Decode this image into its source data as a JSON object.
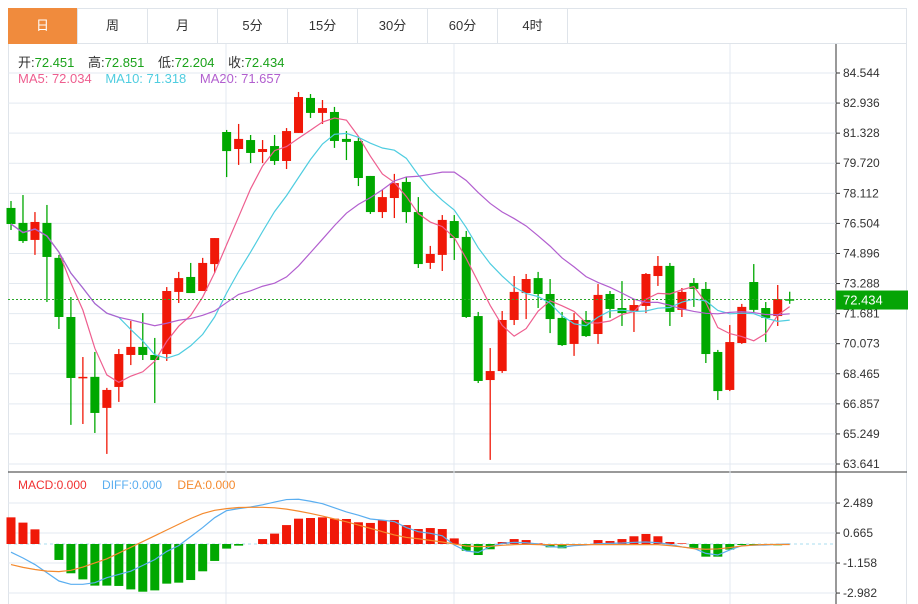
{
  "tabs": [
    {
      "label": "日",
      "active": true
    },
    {
      "label": "周"
    },
    {
      "label": "月"
    },
    {
      "label": "5分"
    },
    {
      "label": "15分"
    },
    {
      "label": "30分"
    },
    {
      "label": "60分"
    },
    {
      "label": "4时"
    }
  ],
  "ohlc_info": {
    "open_label": "开:",
    "open": "72.451",
    "high_label": "高:",
    "high": "72.851",
    "low_label": "低:",
    "low": "72.204",
    "close_label": "收:",
    "close": "72.434"
  },
  "ma_info": {
    "ma5": "MA5: 72.034",
    "ma10": "MA10: 71.318",
    "ma20": "MA20: 71.657"
  },
  "macd_info": {
    "macd": "MACD:0.000",
    "diff": "DIFF:0.000",
    "dea": "DEA:0.000"
  },
  "current_price": "72.434",
  "colors": {
    "up": "#f01808",
    "down": "#00a800",
    "ma5": "#ee5e8f",
    "ma10": "#4fcde0",
    "ma20": "#b25fcf",
    "diff": "#5aaef0",
    "dea": "#f48a2e",
    "accent": "#f08b3d"
  },
  "chart_data": {
    "type": "candlestick",
    "price_ticks": [
      "84.544",
      "82.936",
      "81.328",
      "79.720",
      "78.112",
      "76.504",
      "74.896",
      "73.288",
      "71.681",
      "70.073",
      "68.465",
      "66.857",
      "65.249",
      "63.641"
    ],
    "price_range": [
      63.641,
      84.544
    ],
    "candles": [
      [
        77.33,
        76.47,
        77.7,
        76.15
      ],
      [
        76.53,
        75.56,
        78.02,
        75.46
      ],
      [
        75.62,
        76.58,
        77.11,
        74.82
      ],
      [
        76.53,
        74.71,
        77.49,
        72.3
      ],
      [
        74.66,
        71.5,
        74.82,
        70.86
      ],
      [
        71.5,
        68.24,
        72.57,
        65.73
      ],
      [
        68.24,
        68.3,
        69.36,
        65.78
      ],
      [
        68.3,
        66.37,
        69.63,
        65.3
      ],
      [
        66.64,
        67.6,
        67.71,
        64.18
      ],
      [
        67.76,
        69.52,
        69.79,
        66.96
      ],
      [
        69.47,
        69.9,
        71.29,
        68.93
      ],
      [
        69.9,
        69.47,
        71.71,
        69.2
      ],
      [
        69.47,
        69.2,
        70.38,
        66.9
      ],
      [
        69.52,
        72.89,
        73.1,
        69.15
      ],
      [
        72.84,
        73.58,
        73.91,
        72.25
      ],
      [
        73.64,
        72.78,
        74.39,
        72.78
      ],
      [
        72.89,
        74.39,
        74.66,
        73.85
      ],
      [
        74.33,
        75.72,
        75.72,
        73.85
      ],
      [
        81.39,
        80.37,
        81.5,
        78.98
      ],
      [
        80.48,
        81.02,
        81.82,
        79.63
      ],
      [
        80.96,
        80.27,
        81.23,
        79.73
      ],
      [
        80.32,
        80.48,
        80.96,
        79.73
      ],
      [
        80.64,
        79.84,
        81.23,
        79.63
      ],
      [
        79.84,
        81.44,
        81.6,
        79.41
      ],
      [
        81.34,
        83.26,
        83.53,
        81.34
      ],
      [
        83.21,
        82.41,
        83.42,
        82.14
      ],
      [
        82.41,
        82.67,
        83.1,
        81.82
      ],
      [
        82.46,
        80.91,
        82.73,
        80.54
      ],
      [
        81.02,
        80.86,
        81.44,
        79.89
      ],
      [
        80.91,
        78.93,
        81.07,
        78.5
      ],
      [
        79.04,
        77.11,
        79.04,
        77.01
      ],
      [
        77.11,
        77.91,
        78.29,
        76.79
      ],
      [
        77.86,
        78.66,
        79.15,
        76.79
      ],
      [
        78.72,
        77.11,
        78.98,
        76.53
      ],
      [
        77.11,
        74.33,
        77.91,
        74.12
      ],
      [
        74.39,
        74.87,
        75.3,
        74.07
      ],
      [
        74.82,
        76.69,
        76.95,
        73.96
      ],
      [
        76.63,
        75.72,
        76.95,
        74.55
      ],
      [
        75.78,
        71.5,
        76.1,
        71.45
      ],
      [
        71.55,
        68.08,
        71.77,
        67.97
      ],
      [
        68.13,
        68.61,
        69.84,
        63.86
      ],
      [
        68.61,
        71.34,
        71.82,
        68.51
      ],
      [
        71.34,
        72.84,
        73.69,
        71.07
      ],
      [
        72.78,
        73.53,
        73.8,
        71.39
      ],
      [
        73.58,
        72.73,
        73.91,
        71.98
      ],
      [
        72.73,
        71.39,
        73.53,
        70.64
      ],
      [
        71.45,
        70.0,
        71.77,
        69.95
      ],
      [
        70.06,
        71.34,
        71.71,
        69.42
      ],
      [
        71.34,
        70.48,
        71.82,
        70.43
      ],
      [
        70.59,
        72.68,
        73.26,
        70.06
      ],
      [
        72.73,
        71.93,
        72.89,
        71.45
      ],
      [
        71.98,
        71.71,
        73.42,
        71.02
      ],
      [
        71.82,
        72.14,
        72.46,
        70.7
      ],
      [
        72.09,
        73.8,
        73.85,
        71.71
      ],
      [
        73.69,
        74.23,
        74.76,
        73.16
      ],
      [
        74.23,
        71.77,
        74.39,
        71.02
      ],
      [
        71.88,
        72.84,
        73.05,
        71.5
      ],
      [
        73.32,
        73.0,
        73.58,
        72.04
      ],
      [
        73.0,
        69.52,
        73.37,
        69.04
      ],
      [
        69.63,
        67.54,
        69.74,
        67.06
      ],
      [
        67.6,
        70.16,
        71.07,
        67.54
      ],
      [
        70.11,
        72.04,
        72.2,
        70.06
      ],
      [
        73.37,
        71.88,
        74.33,
        71.77
      ],
      [
        71.98,
        71.45,
        72.3,
        70.16
      ],
      [
        71.55,
        72.46,
        73.21,
        71.02
      ],
      [
        72.451,
        72.434,
        72.851,
        72.204
      ]
    ],
    "macd_ticks": [
      "2.489",
      "0.665",
      "-1.158",
      "-2.982"
    ],
    "macd_hist": [
      1.62,
      1.3,
      0.89,
      0,
      -0.97,
      -1.78,
      -2.15,
      -2.53,
      -2.53,
      -2.55,
      -2.76,
      -2.9,
      -2.82,
      -2.41,
      -2.35,
      -2.19,
      -1.66,
      -1.03,
      -0.28,
      -0.1,
      0,
      0.3,
      0.63,
      1.15,
      1.54,
      1.58,
      1.62,
      1.54,
      1.52,
      1.32,
      1.28,
      1.46,
      1.46,
      1.15,
      0.91,
      0.97,
      0.91,
      0.34,
      -0.41,
      -0.67,
      -0.32,
      0.12,
      0.3,
      0.24,
      0.04,
      -0.2,
      -0.26,
      -0.06,
      -0.06,
      0.24,
      0.18,
      0.3,
      0.47,
      0.61,
      0.47,
      0.12,
      0.04,
      -0.24,
      -0.77,
      -0.77,
      -0.34,
      -0.06,
      -0.06,
      -0.06,
      -0.08,
      0
    ],
    "diff": [
      -0.5,
      -0.85,
      -1.25,
      -1.75,
      -2.25,
      -2.45,
      -2.45,
      -2.35,
      -2.05,
      -1.85,
      -1.65,
      -1.3,
      -0.95,
      -0.45,
      -0.1,
      0.45,
      1.0,
      1.6,
      2.03,
      2.15,
      2.25,
      2.38,
      2.55,
      2.7,
      2.72,
      2.6,
      2.45,
      2.2,
      1.95,
      1.75,
      1.52,
      1.45,
      1.36,
      1.0,
      0.75,
      0.65,
      0.5,
      -0.06,
      -0.43,
      -0.51,
      -0.16,
      0.04,
      0.1,
      0.08,
      0,
      -0.16,
      -0.2,
      -0.1,
      -0.06,
      0.02,
      0.04,
      0.06,
      0.1,
      0.12,
      0.08,
      -0.02,
      -0.18,
      -0.26,
      -0.57,
      -0.67,
      -0.36,
      -0.1,
      -0.08,
      -0.06,
      -0.02,
      0
    ],
    "dea": [
      -1.25,
      -1.42,
      -1.55,
      -1.65,
      -1.68,
      -1.6,
      -1.4,
      -1.15,
      -0.9,
      -0.55,
      -0.2,
      0.15,
      0.5,
      0.85,
      1.2,
      1.55,
      1.85,
      2.05,
      2.15,
      2.22,
      2.23,
      2.23,
      2.2,
      2.12,
      2.0,
      1.86,
      1.7,
      1.52,
      1.35,
      1.15,
      0.95,
      0.75,
      0.55,
      0.4,
      0.32,
      0.22,
      0.12,
      0.0,
      -0.12,
      -0.16,
      -0.14,
      -0.08,
      -0.04,
      -0.02,
      -0.04,
      -0.04,
      -0.04,
      -0.04,
      -0.04,
      -0.04,
      -0.04,
      -0.04,
      -0.04,
      -0.04,
      -0.04,
      -0.1,
      -0.18,
      -0.28,
      -0.32,
      -0.3,
      -0.22,
      -0.12,
      -0.06,
      -0.03,
      -0.03,
      -0.03
    ],
    "macd_range": [
      -2.982,
      2.489
    ]
  }
}
